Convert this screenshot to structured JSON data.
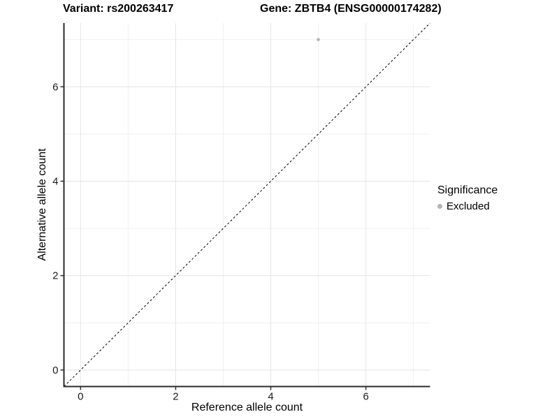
{
  "title": {
    "variant": "Variant: rs200263417",
    "gene": "Gene: ZBTB4 (ENSG00000174282)"
  },
  "chart_data": {
    "type": "scatter",
    "xlabel": "Reference allele count",
    "ylabel": "Alternative allele count",
    "xlim": [
      -0.35,
      7.35
    ],
    "ylim": [
      -0.35,
      7.35
    ],
    "x_major_ticks": [
      0,
      2,
      4,
      6
    ],
    "y_major_ticks": [
      0,
      2,
      4,
      6
    ],
    "x_minor_gridlines": [
      1,
      3,
      5,
      7
    ],
    "y_minor_gridlines": [
      1,
      3,
      5,
      7
    ],
    "grid": true,
    "points": [
      {
        "x": 5,
        "y": 7,
        "series": "Excluded"
      }
    ],
    "reference_line": {
      "equation": "y = x",
      "style": "dashed",
      "color": "#000000"
    },
    "legend": {
      "title": "Significance",
      "position": "right",
      "items": [
        {
          "label": "Excluded",
          "color": "#b5b5b5"
        }
      ]
    },
    "series_colors": {
      "Excluded": "#b5b5b5"
    }
  },
  "colors": {
    "background": "#ffffff",
    "grid_major": "#e5e5e5",
    "grid_minor": "#f0f0f0",
    "axis_line": "#2b2b2b",
    "tick_mark": "#333333",
    "text": "#000000"
  }
}
